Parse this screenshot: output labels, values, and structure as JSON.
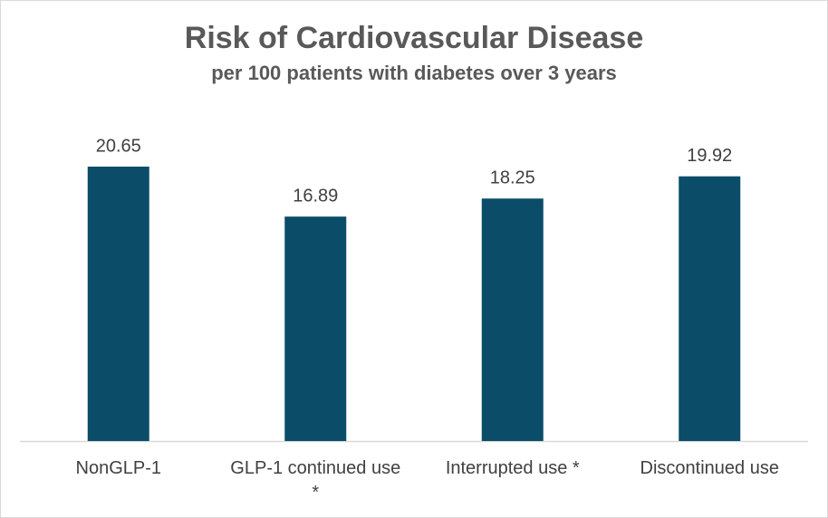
{
  "chart_data": {
    "type": "bar",
    "title": "Risk of Cardiovascular Disease",
    "subtitle": "per 100 patients with diabetes over 3 years",
    "categories": [
      "NonGLP-1",
      "GLP-1 continued use *",
      "Interrupted use *",
      "Discontinued use"
    ],
    "values": [
      20.65,
      16.89,
      18.25,
      19.92
    ],
    "color": "#0b4d68"
  }
}
